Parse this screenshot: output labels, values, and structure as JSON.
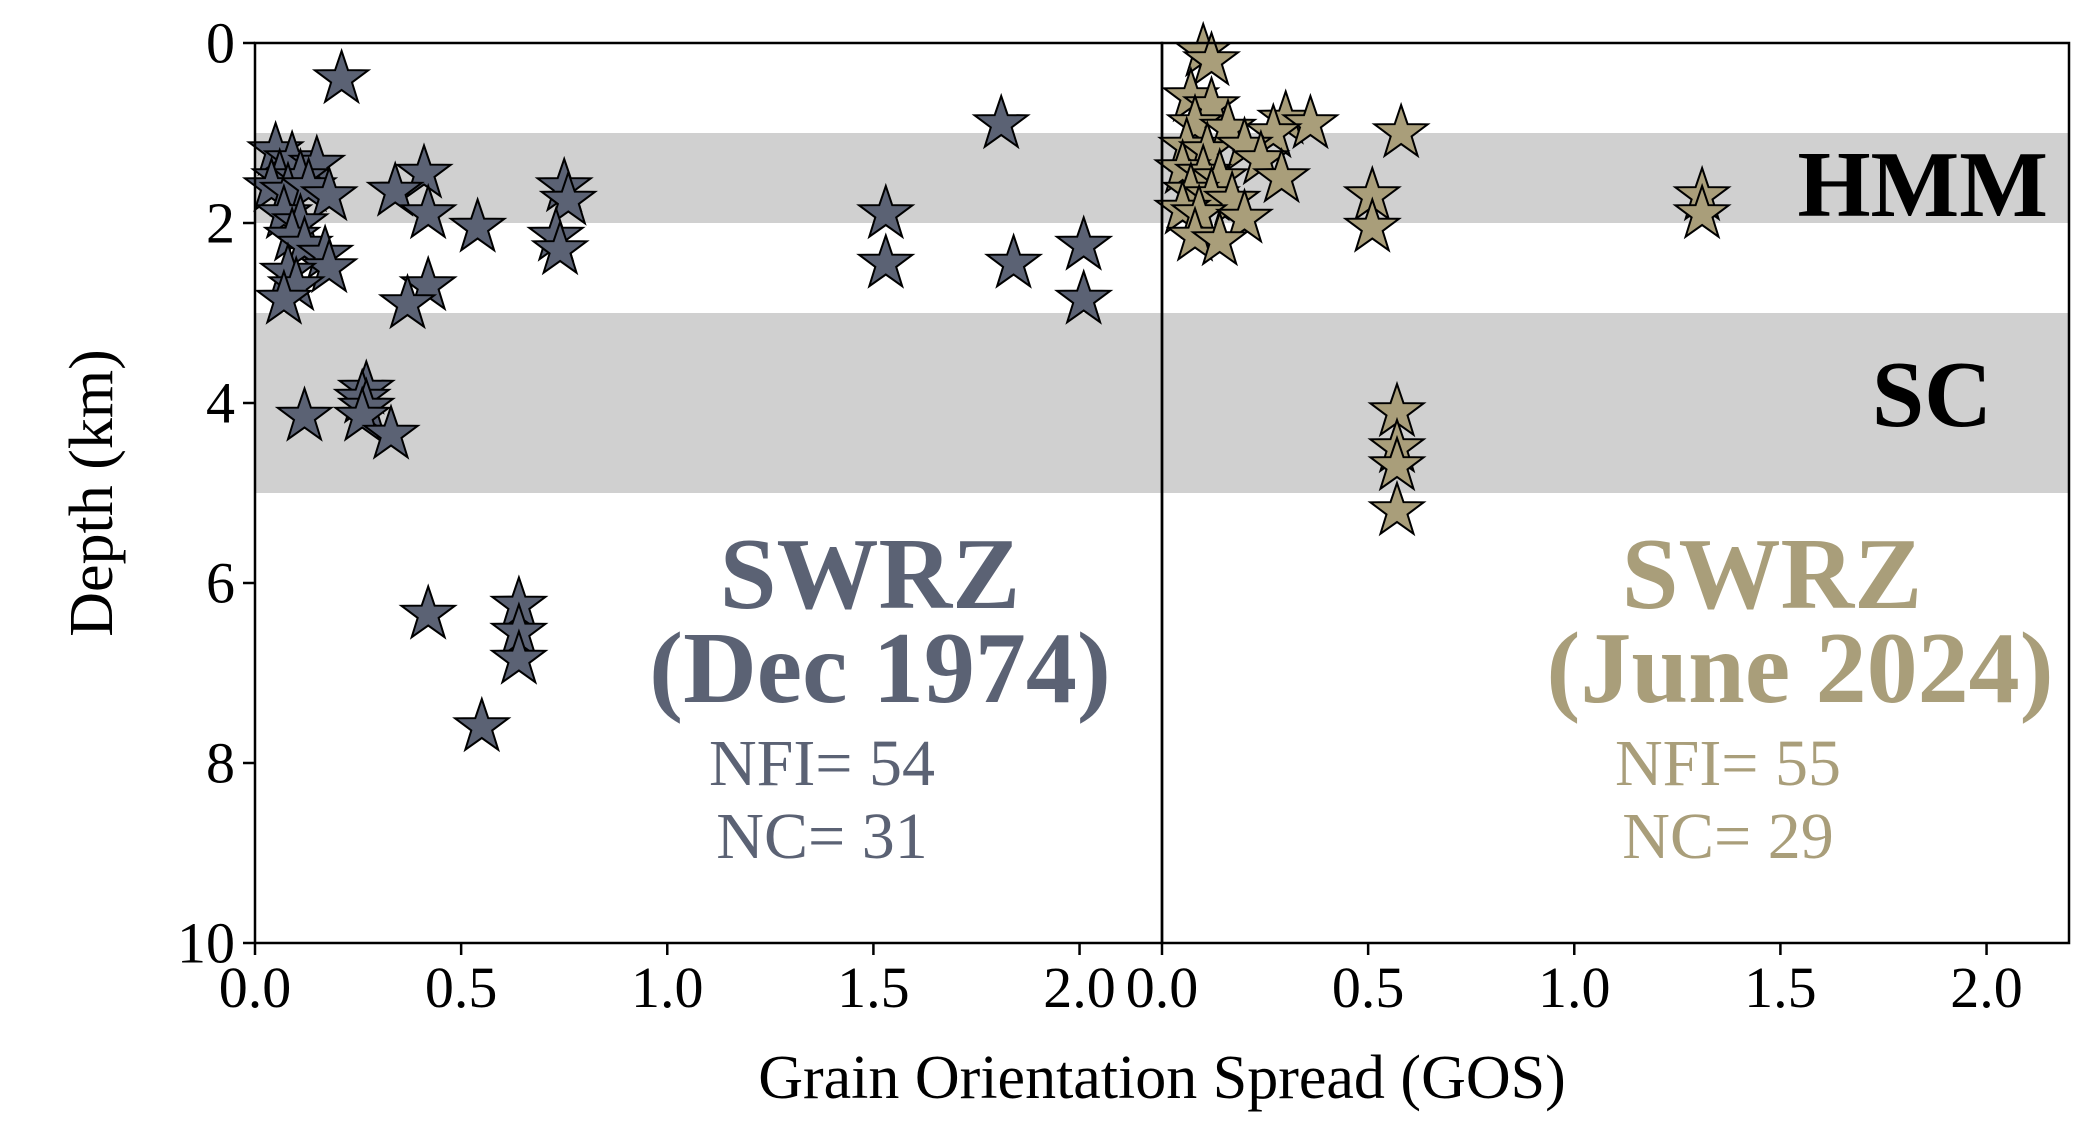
{
  "colors": {
    "left_series": "#5b6274",
    "right_series": "#a99e7a",
    "band": "#d0d0d0",
    "axis": "#000000"
  },
  "chart_data": {
    "type": "scatter",
    "marker": "star",
    "title": "",
    "xlabel": "Grain Orientation Spread (GOS)",
    "ylabel": "Depth (km)",
    "ylim": [
      0,
      10
    ],
    "y_inverted": true,
    "yticks": [
      "0",
      "2",
      "4",
      "6",
      "8",
      "10"
    ],
    "bands": [
      {
        "label": "HMM",
        "y_range": [
          1,
          2
        ]
      },
      {
        "label": "SC",
        "y_range": [
          3,
          5
        ]
      }
    ],
    "panels": [
      {
        "xlim": [
          0,
          2.2
        ],
        "xticks": [
          "0.0",
          "0.5",
          "1.0",
          "1.5",
          "2.0"
        ],
        "title_line1": "SWRZ",
        "title_line2": "(Dec 1974)",
        "stat_nfi": "NFI= 54",
        "stat_nc": "NC= 31",
        "points": [
          {
            "x": 0.21,
            "y": 0.4
          },
          {
            "x": 1.81,
            "y": 0.9
          },
          {
            "x": 0.05,
            "y": 1.2
          },
          {
            "x": 0.09,
            "y": 1.3
          },
          {
            "x": 0.15,
            "y": 1.35
          },
          {
            "x": 0.06,
            "y": 1.5
          },
          {
            "x": 0.11,
            "y": 1.5
          },
          {
            "x": 0.04,
            "y": 1.6
          },
          {
            "x": 0.08,
            "y": 1.65
          },
          {
            "x": 0.13,
            "y": 1.6
          },
          {
            "x": 0.18,
            "y": 1.7
          },
          {
            "x": 0.41,
            "y": 1.45
          },
          {
            "x": 0.34,
            "y": 1.65
          },
          {
            "x": 0.75,
            "y": 1.6
          },
          {
            "x": 0.76,
            "y": 1.75
          },
          {
            "x": 0.42,
            "y": 1.9
          },
          {
            "x": 0.07,
            "y": 1.9
          },
          {
            "x": 0.11,
            "y": 2.0
          },
          {
            "x": 0.09,
            "y": 2.15
          },
          {
            "x": 0.12,
            "y": 2.25
          },
          {
            "x": 0.54,
            "y": 2.05
          },
          {
            "x": 0.73,
            "y": 2.15
          },
          {
            "x": 0.74,
            "y": 2.3
          },
          {
            "x": 1.53,
            "y": 1.9
          },
          {
            "x": 1.53,
            "y": 2.45
          },
          {
            "x": 1.84,
            "y": 2.45
          },
          {
            "x": 2.01,
            "y": 2.25
          },
          {
            "x": 2.01,
            "y": 2.85
          },
          {
            "x": 0.17,
            "y": 2.35
          },
          {
            "x": 0.18,
            "y": 2.5
          },
          {
            "x": 0.08,
            "y": 2.55
          },
          {
            "x": 0.1,
            "y": 2.7
          },
          {
            "x": 0.07,
            "y": 2.85
          },
          {
            "x": 0.42,
            "y": 2.7
          },
          {
            "x": 0.37,
            "y": 2.9
          },
          {
            "x": 0.27,
            "y": 3.85
          },
          {
            "x": 0.26,
            "y": 3.95
          },
          {
            "x": 0.27,
            "y": 4.05
          },
          {
            "x": 0.26,
            "y": 4.15
          },
          {
            "x": 0.12,
            "y": 4.15
          },
          {
            "x": 0.33,
            "y": 4.35
          },
          {
            "x": 0.64,
            "y": 6.25
          },
          {
            "x": 0.42,
            "y": 6.35
          },
          {
            "x": 0.64,
            "y": 6.55
          },
          {
            "x": 0.64,
            "y": 6.85
          },
          {
            "x": 0.55,
            "y": 7.6
          }
        ]
      },
      {
        "xlim": [
          0,
          2.2
        ],
        "xticks": [
          "0.0",
          "0.5",
          "1.0",
          "1.5",
          "2.0"
        ],
        "title_line1": "SWRZ",
        "title_line2": "(June 2024)",
        "stat_nfi": "NFI= 55",
        "stat_nc": "NC= 29",
        "points": [
          {
            "x": 0.1,
            "y": 0.1
          },
          {
            "x": 0.12,
            "y": 0.2
          },
          {
            "x": 0.07,
            "y": 0.6
          },
          {
            "x": 0.12,
            "y": 0.7
          },
          {
            "x": 0.08,
            "y": 0.9
          },
          {
            "x": 0.16,
            "y": 0.95
          },
          {
            "x": 0.3,
            "y": 0.85
          },
          {
            "x": 0.36,
            "y": 0.9
          },
          {
            "x": 0.27,
            "y": 1.0
          },
          {
            "x": 0.58,
            "y": 1.0
          },
          {
            "x": 0.06,
            "y": 1.15
          },
          {
            "x": 0.11,
            "y": 1.2
          },
          {
            "x": 0.2,
            "y": 1.15
          },
          {
            "x": 0.24,
            "y": 1.3
          },
          {
            "x": 0.05,
            "y": 1.4
          },
          {
            "x": 0.1,
            "y": 1.45
          },
          {
            "x": 0.14,
            "y": 1.5
          },
          {
            "x": 0.29,
            "y": 1.5
          },
          {
            "x": 0.07,
            "y": 1.65
          },
          {
            "x": 0.12,
            "y": 1.7
          },
          {
            "x": 0.17,
            "y": 1.75
          },
          {
            "x": 0.51,
            "y": 1.7
          },
          {
            "x": 1.31,
            "y": 1.7
          },
          {
            "x": 0.05,
            "y": 1.85
          },
          {
            "x": 0.09,
            "y": 1.9
          },
          {
            "x": 0.2,
            "y": 1.95
          },
          {
            "x": 1.31,
            "y": 1.9
          },
          {
            "x": 0.51,
            "y": 2.05
          },
          {
            "x": 0.08,
            "y": 2.15
          },
          {
            "x": 0.14,
            "y": 2.2
          },
          {
            "x": 0.57,
            "y": 4.1
          },
          {
            "x": 0.57,
            "y": 4.5
          },
          {
            "x": 0.57,
            "y": 4.7
          },
          {
            "x": 0.57,
            "y": 5.2
          }
        ]
      }
    ]
  }
}
